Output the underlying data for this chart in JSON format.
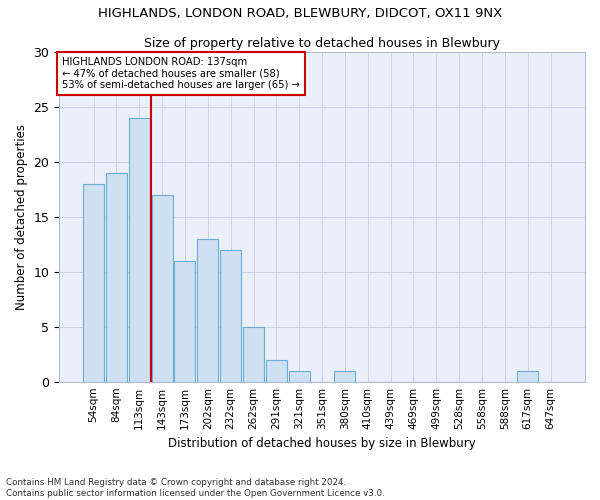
{
  "title": "HIGHLANDS, LONDON ROAD, BLEWBURY, DIDCOT, OX11 9NX",
  "subtitle": "Size of property relative to detached houses in Blewbury",
  "xlabel": "Distribution of detached houses by size in Blewbury",
  "ylabel": "Number of detached properties",
  "categories": [
    "54sqm",
    "84sqm",
    "113sqm",
    "143sqm",
    "173sqm",
    "202sqm",
    "232sqm",
    "262sqm",
    "291sqm",
    "321sqm",
    "351sqm",
    "380sqm",
    "410sqm",
    "439sqm",
    "469sqm",
    "499sqm",
    "528sqm",
    "558sqm",
    "588sqm",
    "617sqm",
    "647sqm"
  ],
  "values": [
    18,
    19,
    24,
    17,
    11,
    13,
    12,
    5,
    2,
    1,
    0,
    1,
    0,
    0,
    0,
    0,
    0,
    0,
    0,
    1,
    0
  ],
  "bar_color": "#cfe0f2",
  "bar_edge_color": "#6aaed6",
  "grid_color": "#c8d4e8",
  "background_color": "#eaf0fb",
  "annotation_text_line1": "HIGHLANDS LONDON ROAD: 137sqm",
  "annotation_text_line2": "← 47% of detached houses are smaller (58)",
  "annotation_text_line3": "53% of semi-detached houses are larger (65) →",
  "annotation_box_color": "#ffffff",
  "annotation_box_edge_color": "#cc0000",
  "vline_color": "#cc0000",
  "ylim": [
    0,
    30
  ],
  "yticks": [
    0,
    5,
    10,
    15,
    20,
    25,
    30
  ],
  "footer1": "Contains HM Land Registry data © Crown copyright and database right 2024.",
  "footer2": "Contains public sector information licensed under the Open Government Licence v3.0."
}
